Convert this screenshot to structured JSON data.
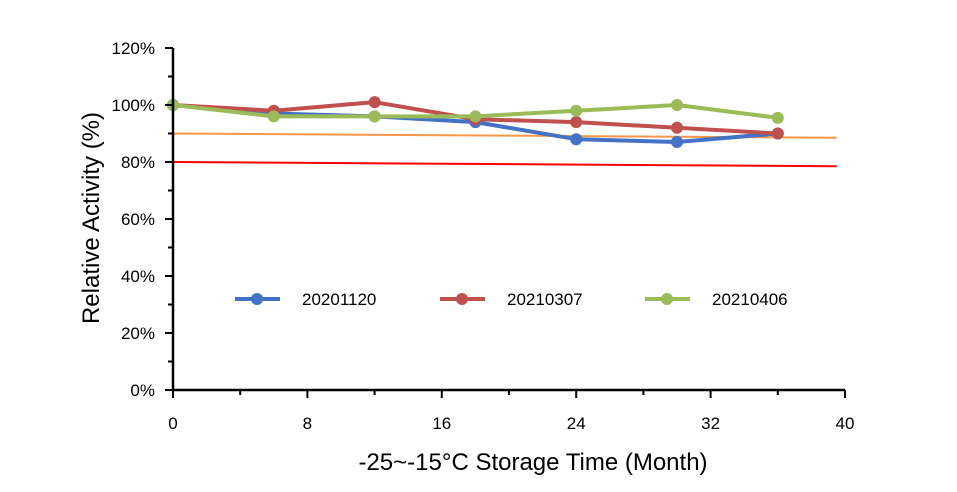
{
  "chart_data": {
    "type": "line",
    "title": "",
    "xlabel": "-25~-15°C Storage Time (Month)",
    "ylabel": "Relative Activity (%)",
    "xlim": [
      0,
      40
    ],
    "ylim": [
      0,
      120
    ],
    "x_ticks": [
      0,
      8,
      16,
      24,
      32,
      40
    ],
    "x_tick_labels": [
      "0",
      "8",
      "16",
      "24",
      "32",
      "40"
    ],
    "y_ticks": [
      0,
      20,
      40,
      60,
      80,
      100,
      120
    ],
    "y_tick_labels": [
      "0%",
      "20%",
      "40%",
      "60%",
      "80%",
      "100%",
      "120%"
    ],
    "grid": false,
    "legend_position": "middle",
    "series": [
      {
        "name": "20201120",
        "color": "#4472c4",
        "x": [
          0,
          6,
          12,
          18,
          24,
          30,
          36
        ],
        "y": [
          100,
          97,
          96,
          94,
          88,
          87,
          90
        ]
      },
      {
        "name": "20210307",
        "color": "#c0504d",
        "x": [
          0,
          6,
          12,
          18,
          24,
          30,
          36
        ],
        "y": [
          100,
          98,
          101,
          95,
          94,
          92,
          90
        ]
      },
      {
        "name": "20210406",
        "color": "#9bbb59",
        "x": [
          0,
          6,
          12,
          18,
          24,
          30,
          36
        ],
        "y": [
          100,
          96,
          96,
          96,
          98,
          100,
          95.5
        ]
      }
    ],
    "reference_lines": [
      {
        "color": "#f79646",
        "x": [
          0,
          39.5
        ],
        "y": [
          90,
          88.5
        ]
      },
      {
        "color": "#ff0000",
        "x": [
          0,
          39.5
        ],
        "y": [
          80,
          78.5
        ]
      }
    ]
  }
}
